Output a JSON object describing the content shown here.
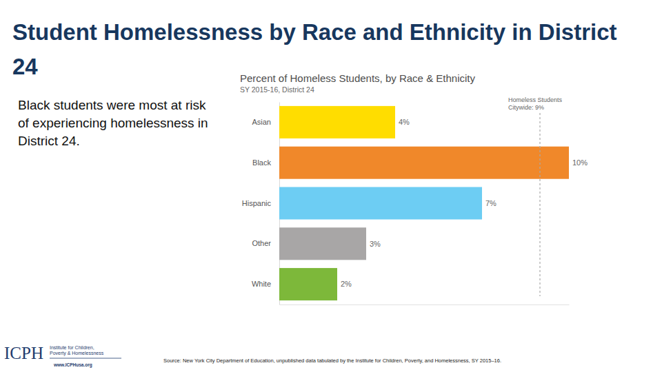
{
  "slide": {
    "title": "Student Homelessness by Race and Ethnicity in District 24",
    "text": "Black students were most at risk of experiencing homelessness in District 24.",
    "source": "Source: New York City Department of Education, unpublished data tabulated by the Institute for Children, Poverty, and Homelessness, SY 2015–16.",
    "logo": {
      "name": "ICPH",
      "lines": [
        "Institute for Children,",
        "Poverty & Homelessness"
      ],
      "url": "www.ICPHusa.org"
    }
  },
  "chart_data": {
    "type": "bar",
    "orientation": "horizontal",
    "title": "Percent of Homeless Students, by Race & Ethnicity",
    "subtitle": "SY 2015-16, District 24",
    "categories": [
      "Asian",
      "Black",
      "Hispanic",
      "Other",
      "White"
    ],
    "values": [
      4,
      10,
      7,
      3,
      2
    ],
    "value_labels": [
      "4%",
      "10%",
      "7%",
      "3%",
      "2%"
    ],
    "colors": [
      "#ffdd00",
      "#f0882a",
      "#6dcdf3",
      "#a8a6a6",
      "#7db83a"
    ],
    "data_labels": true,
    "tick_labels": "y",
    "grid": false,
    "xlim": [
      0,
      10
    ],
    "xticks": [],
    "annotations": [
      {
        "value": 9,
        "label_lines": [
          "Homeless Students",
          "Citywide: 9%"
        ]
      }
    ]
  }
}
